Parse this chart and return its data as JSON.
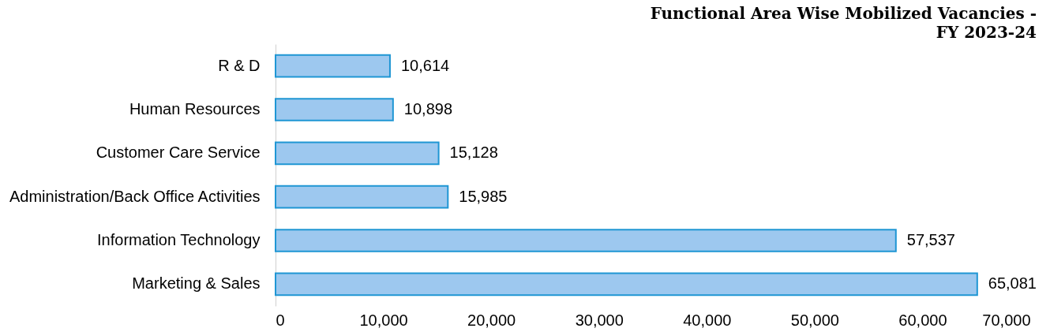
{
  "chart_data": {
    "type": "bar",
    "orientation": "horizontal",
    "title": "Functional Area Wise Mobilized Vacancies - FY 2023-24",
    "categories": [
      "R & D",
      "Human Resources",
      "Customer Care Service",
      "Administration/Back Office Activities",
      "Information Technology",
      "Marketing & Sales"
    ],
    "values": [
      10614,
      10898,
      15128,
      15985,
      57537,
      65081
    ],
    "value_labels": [
      "10,614",
      "10,898",
      "15,128",
      "15,985",
      "57,537",
      "65,081"
    ],
    "color": "#9dc8ef",
    "xlim": [
      0,
      70000
    ],
    "xticks": [
      0,
      {
        "value": 10000,
        "label": "10,000"
      },
      {
        "value": 20000,
        "label": "20,000"
      },
      {
        "value": 30000,
        "label": "30,000"
      },
      {
        "value": 40000,
        "label": "40,000"
      },
      {
        "value": 50000,
        "label": "50,000"
      },
      {
        "value": 60000,
        "label": "60,000"
      },
      {
        "value": 70000,
        "label": "70,000"
      }
    ],
    "grid": false
  }
}
